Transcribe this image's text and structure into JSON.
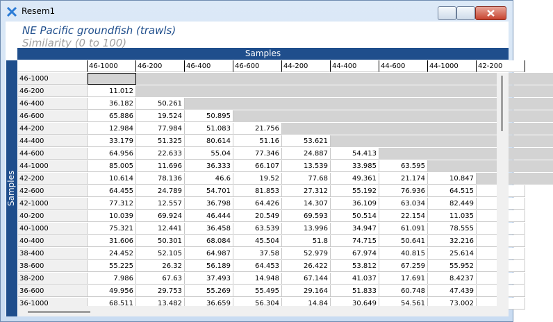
{
  "window": {
    "title": "Resem1"
  },
  "header": {
    "title": "NE Pacific groundfish (trawls)",
    "subtitle": "Similarity (0 to 100)"
  },
  "table": {
    "column_axis": "Samples",
    "row_axis": "Samples",
    "columns": [
      "46-1000",
      "46-200",
      "46-400",
      "46-600",
      "44-200",
      "44-400",
      "44-600",
      "44-1000",
      "42-200"
    ],
    "rows": [
      {
        "label": "46-1000",
        "values": []
      },
      {
        "label": "46-200",
        "values": [
          11.012
        ]
      },
      {
        "label": "46-400",
        "values": [
          36.182,
          50.261
        ]
      },
      {
        "label": "46-600",
        "values": [
          65.886,
          19.524,
          50.895
        ]
      },
      {
        "label": "44-200",
        "values": [
          12.984,
          77.984,
          51.083,
          21.756
        ]
      },
      {
        "label": "44-400",
        "values": [
          33.179,
          51.325,
          80.614,
          51.16,
          53.621
        ]
      },
      {
        "label": "44-600",
        "values": [
          64.956,
          22.633,
          55.04,
          77.346,
          24.887,
          54.413
        ]
      },
      {
        "label": "44-1000",
        "values": [
          85.005,
          11.696,
          36.333,
          66.107,
          13.539,
          33.985,
          63.595
        ]
      },
      {
        "label": "42-200",
        "values": [
          10.614,
          78.136,
          46.6,
          19.52,
          77.68,
          49.361,
          21.174,
          10.847
        ]
      },
      {
        "label": "42-600",
        "values": [
          64.455,
          24.789,
          54.701,
          81.853,
          27.312,
          55.192,
          76.936,
          64.515
        ]
      },
      {
        "label": "42-1000",
        "values": [
          77.312,
          12.557,
          36.798,
          64.426,
          14.307,
          36.109,
          63.034,
          82.449
        ]
      },
      {
        "label": "40-200",
        "values": [
          10.039,
          69.924,
          46.444,
          20.549,
          69.593,
          50.514,
          22.154,
          11.035
        ]
      },
      {
        "label": "40-1000",
        "values": [
          75.321,
          12.441,
          36.458,
          63.539,
          13.996,
          34.947,
          61.091,
          78.555
        ]
      },
      {
        "label": "40-400",
        "values": [
          31.606,
          50.301,
          68.084,
          45.504,
          51.8,
          74.715,
          50.641,
          32.216
        ]
      },
      {
        "label": "38-400",
        "values": [
          24.452,
          52.105,
          64.987,
          37.58,
          52.979,
          67.974,
          40.815,
          25.614
        ]
      },
      {
        "label": "38-600",
        "values": [
          55.225,
          26.32,
          56.189,
          64.453,
          26.422,
          53.812,
          67.259,
          55.952
        ]
      },
      {
        "label": "38-200",
        "values": [
          7.986,
          67.63,
          37.493,
          14.948,
          67.144,
          41.037,
          17.691,
          8.4237
        ]
      },
      {
        "label": "36-600",
        "values": [
          49.956,
          29.753,
          55.269,
          55.495,
          29.164,
          51.833,
          60.748,
          47.439
        ]
      },
      {
        "label": "36-1000",
        "values": [
          68.511,
          13.482,
          36.659,
          56.304,
          14.84,
          30.649,
          54.561,
          73.002
        ]
      }
    ]
  }
}
